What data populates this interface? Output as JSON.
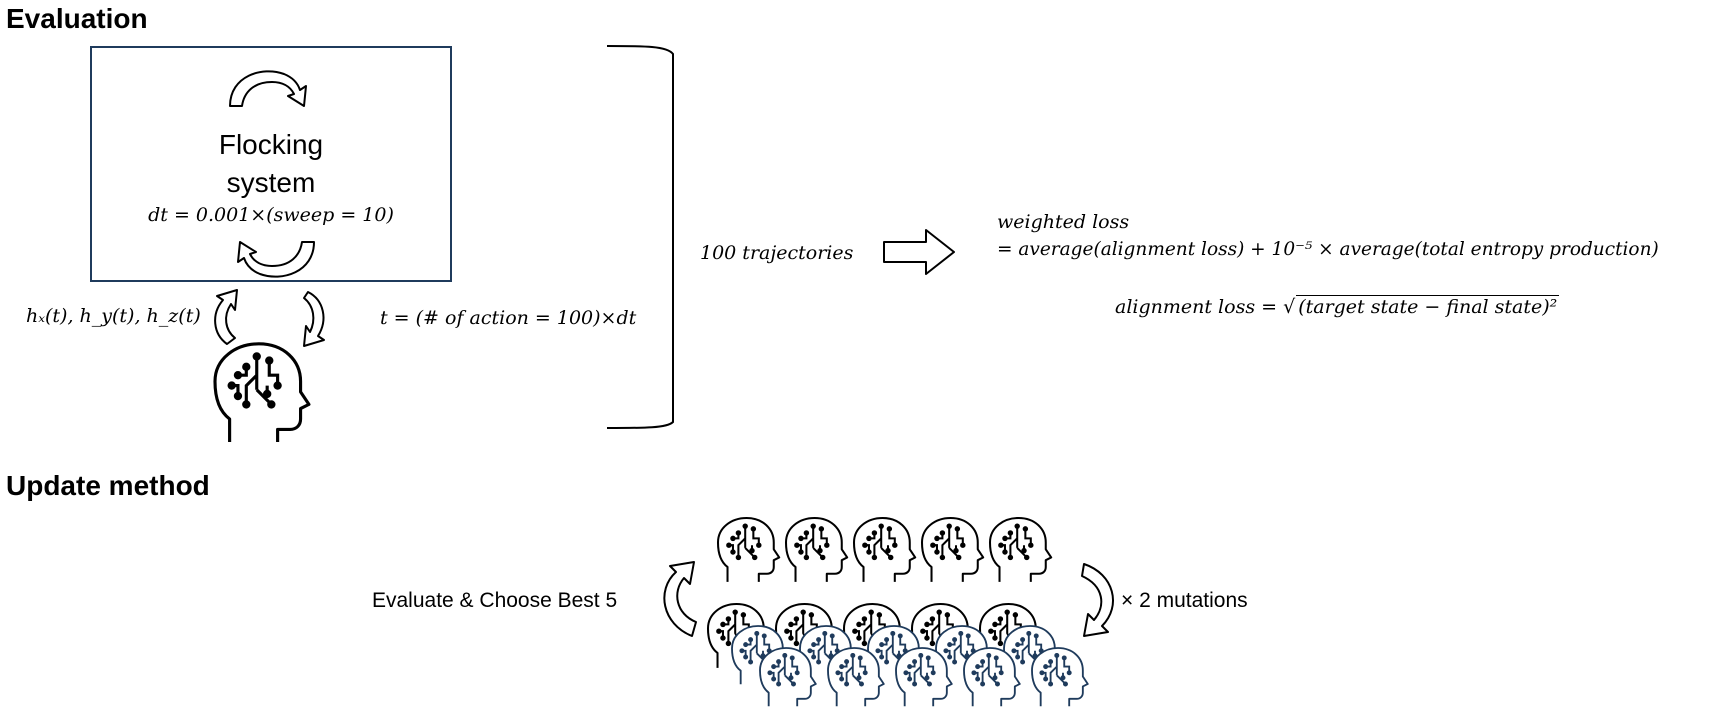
{
  "evaluation": {
    "heading": "Evaluation",
    "system_title_line1": "Flocking",
    "system_title_line2": "system",
    "dt_formula": "dt = 0.001×(sweep = 10)",
    "field_inputs": "hₓ(t), h_y(t), h_z(t)",
    "time_formula": "t = (# of action = 100)×dt",
    "trajectories": "100 trajectories",
    "weighted_loss_label": "weighted loss",
    "weighted_loss_formula": "= average(alignment loss) + 10⁻⁵ × average(total entropy production)",
    "alignment_loss_lhs": "alignment loss = √",
    "alignment_loss_radicand": "(target state  − final state)²"
  },
  "update": {
    "heading": "Update method",
    "evaluate_label": "Evaluate & Choose Best 5",
    "mutations_label": "× 2 mutations",
    "colors": {
      "selected": "#000000",
      "mutated": "#1f3b5c"
    }
  },
  "icons": {
    "agent": "brain-circuit-head-icon",
    "cycle": "circular-arrow-icon",
    "process": "block-arrow-right-icon"
  }
}
